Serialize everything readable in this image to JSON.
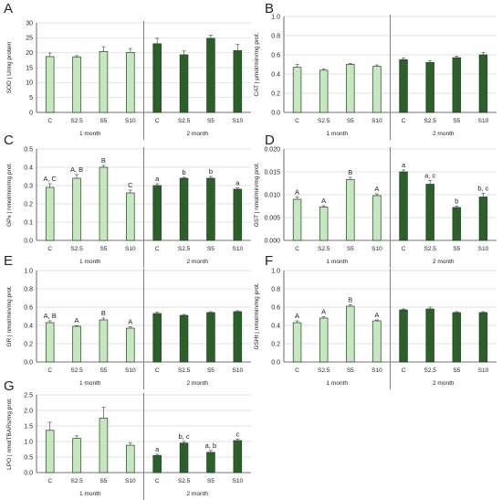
{
  "colors": {
    "month1": "#c6e7bf",
    "month2": "#2c5f2a",
    "month1_stroke": "#3c7a3a",
    "month2_stroke": "#1b3f1a"
  },
  "chart_data": [
    {
      "id": "A",
      "type": "bar",
      "panel_letter": "A",
      "ylabel": "SOD | U/mg protein",
      "ylim": [
        0,
        30
      ],
      "ytick_step": 5,
      "ytick_decimals": 0,
      "categories": [
        "C",
        "S2.5",
        "S5",
        "S10"
      ],
      "groups": [
        "1 month",
        "2 month"
      ],
      "series": [
        {
          "name": "1 month",
          "values": [
            18.7,
            18.6,
            20.4,
            20.1
          ],
          "errors": [
            1.2,
            0.4,
            1.6,
            1.3
          ],
          "labels": [
            "",
            "",
            "",
            ""
          ]
        },
        {
          "name": "2 month",
          "values": [
            23.0,
            19.3,
            24.8,
            20.7
          ],
          "errors": [
            1.8,
            1.3,
            1.1,
            2.1
          ],
          "labels": [
            "",
            "",
            "",
            ""
          ]
        }
      ]
    },
    {
      "id": "B",
      "type": "bar",
      "panel_letter": "B",
      "ylabel": "CAT | μmol/min/mg prot.",
      "ylim": [
        0,
        1
      ],
      "ytick_step": 0.2,
      "ytick_decimals": 1,
      "categories": [
        "C",
        "S2.5",
        "S5",
        "S10"
      ],
      "groups": [
        "1 month",
        "2 month"
      ],
      "series": [
        {
          "name": "1 month",
          "values": [
            0.47,
            0.44,
            0.5,
            0.48
          ],
          "errors": [
            0.03,
            0.015,
            0.01,
            0.015
          ],
          "labels": [
            "",
            "",
            "",
            ""
          ]
        },
        {
          "name": "2 month",
          "values": [
            0.55,
            0.52,
            0.57,
            0.6
          ],
          "errors": [
            0.015,
            0.02,
            0.015,
            0.025
          ],
          "labels": [
            "",
            "",
            "",
            ""
          ]
        }
      ]
    },
    {
      "id": "C",
      "type": "bar",
      "panel_letter": "C",
      "ylabel": "GPx | nmol/min/mg prot.",
      "ylim": [
        0,
        0.5
      ],
      "ytick_step": 0.1,
      "ytick_decimals": 1,
      "categories": [
        "C",
        "S2.5",
        "S5",
        "S10"
      ],
      "groups": [
        "1 month",
        "2 month"
      ],
      "series": [
        {
          "name": "1 month",
          "values": [
            0.29,
            0.34,
            0.4,
            0.26
          ],
          "errors": [
            0.02,
            0.02,
            0.01,
            0.015
          ],
          "labels": [
            "A, C",
            "A, B",
            "B",
            "C"
          ]
        },
        {
          "name": "2 month",
          "values": [
            0.3,
            0.34,
            0.34,
            0.28
          ],
          "errors": [
            0.01,
            0.005,
            0.01,
            0.008
          ],
          "labels": [
            "a",
            "b",
            "b",
            "a"
          ]
        }
      ]
    },
    {
      "id": "D",
      "type": "bar",
      "panel_letter": "D",
      "ylabel": "GST | nmol/min/mg prot.",
      "ylim": [
        0,
        0.02
      ],
      "ytick_step": 0.005,
      "ytick_decimals": 3,
      "categories": [
        "C",
        "S2.5",
        "S5",
        "S10"
      ],
      "groups": [
        "1 month",
        "2 month"
      ],
      "series": [
        {
          "name": "1 month",
          "values": [
            0.009,
            0.0073,
            0.0133,
            0.0098
          ],
          "errors": [
            0.0005,
            0.0003,
            0.0005,
            0.0004
          ],
          "labels": [
            "A",
            "A",
            "B",
            "A"
          ]
        },
        {
          "name": "2 month",
          "values": [
            0.015,
            0.0123,
            0.0072,
            0.0095
          ],
          "errors": [
            0.0004,
            0.0008,
            0.0003,
            0.0008
          ],
          "labels": [
            "a",
            "a, c",
            "b",
            "b, c"
          ]
        }
      ]
    },
    {
      "id": "E",
      "type": "bar",
      "panel_letter": "E",
      "ylabel": "GR | nmol/min/mg prot.",
      "ylim": [
        0,
        1
      ],
      "ytick_step": 0.2,
      "ytick_decimals": 1,
      "categories": [
        "C",
        "S2.5",
        "S5",
        "S10"
      ],
      "groups": [
        "1 month",
        "2 month"
      ],
      "series": [
        {
          "name": "1 month",
          "values": [
            0.43,
            0.39,
            0.46,
            0.37
          ],
          "errors": [
            0.02,
            0.008,
            0.02,
            0.015
          ],
          "labels": [
            "A, B",
            "A",
            "B",
            "A"
          ]
        },
        {
          "name": "2 month",
          "values": [
            0.53,
            0.51,
            0.54,
            0.55
          ],
          "errors": [
            0.015,
            0.01,
            0.01,
            0.01
          ],
          "labels": [
            "",
            "",
            "",
            ""
          ]
        }
      ]
    },
    {
      "id": "F",
      "type": "bar",
      "panel_letter": "F",
      "ylabel": "GSHt | nmol/min/mg prot.",
      "ylim": [
        0,
        1
      ],
      "ytick_step": 0.2,
      "ytick_decimals": 1,
      "categories": [
        "C",
        "S2.5",
        "S5",
        "S10"
      ],
      "groups": [
        "1 month",
        "2 month"
      ],
      "series": [
        {
          "name": "1 month",
          "values": [
            0.43,
            0.48,
            0.61,
            0.45
          ],
          "errors": [
            0.02,
            0.015,
            0.015,
            0.01
          ],
          "labels": [
            "A",
            "A",
            "B",
            "A"
          ]
        },
        {
          "name": "2 month",
          "values": [
            0.57,
            0.58,
            0.54,
            0.54
          ],
          "errors": [
            0.01,
            0.02,
            0.01,
            0.01
          ],
          "labels": [
            "",
            "",
            "",
            ""
          ]
        }
      ]
    },
    {
      "id": "G",
      "type": "bar",
      "panel_letter": "G",
      "ylabel": "LPO | nmolTBARs/mg prot.",
      "ylim": [
        0,
        2.5
      ],
      "ytick_step": 0.5,
      "ytick_decimals": 1,
      "categories": [
        "C",
        "S2.5",
        "S5",
        "S10"
      ],
      "groups": [
        "1 month",
        "2 month"
      ],
      "series": [
        {
          "name": "1 month",
          "values": [
            1.36,
            1.1,
            1.75,
            0.88
          ],
          "errors": [
            0.26,
            0.08,
            0.35,
            0.07
          ],
          "labels": [
            "",
            "",
            "",
            ""
          ]
        },
        {
          "name": "2 month",
          "values": [
            0.55,
            0.95,
            0.65,
            1.03
          ],
          "errors": [
            0.04,
            0.05,
            0.06,
            0.05
          ],
          "labels": [
            "a",
            "b, c",
            "a, b",
            "c"
          ]
        }
      ]
    }
  ]
}
